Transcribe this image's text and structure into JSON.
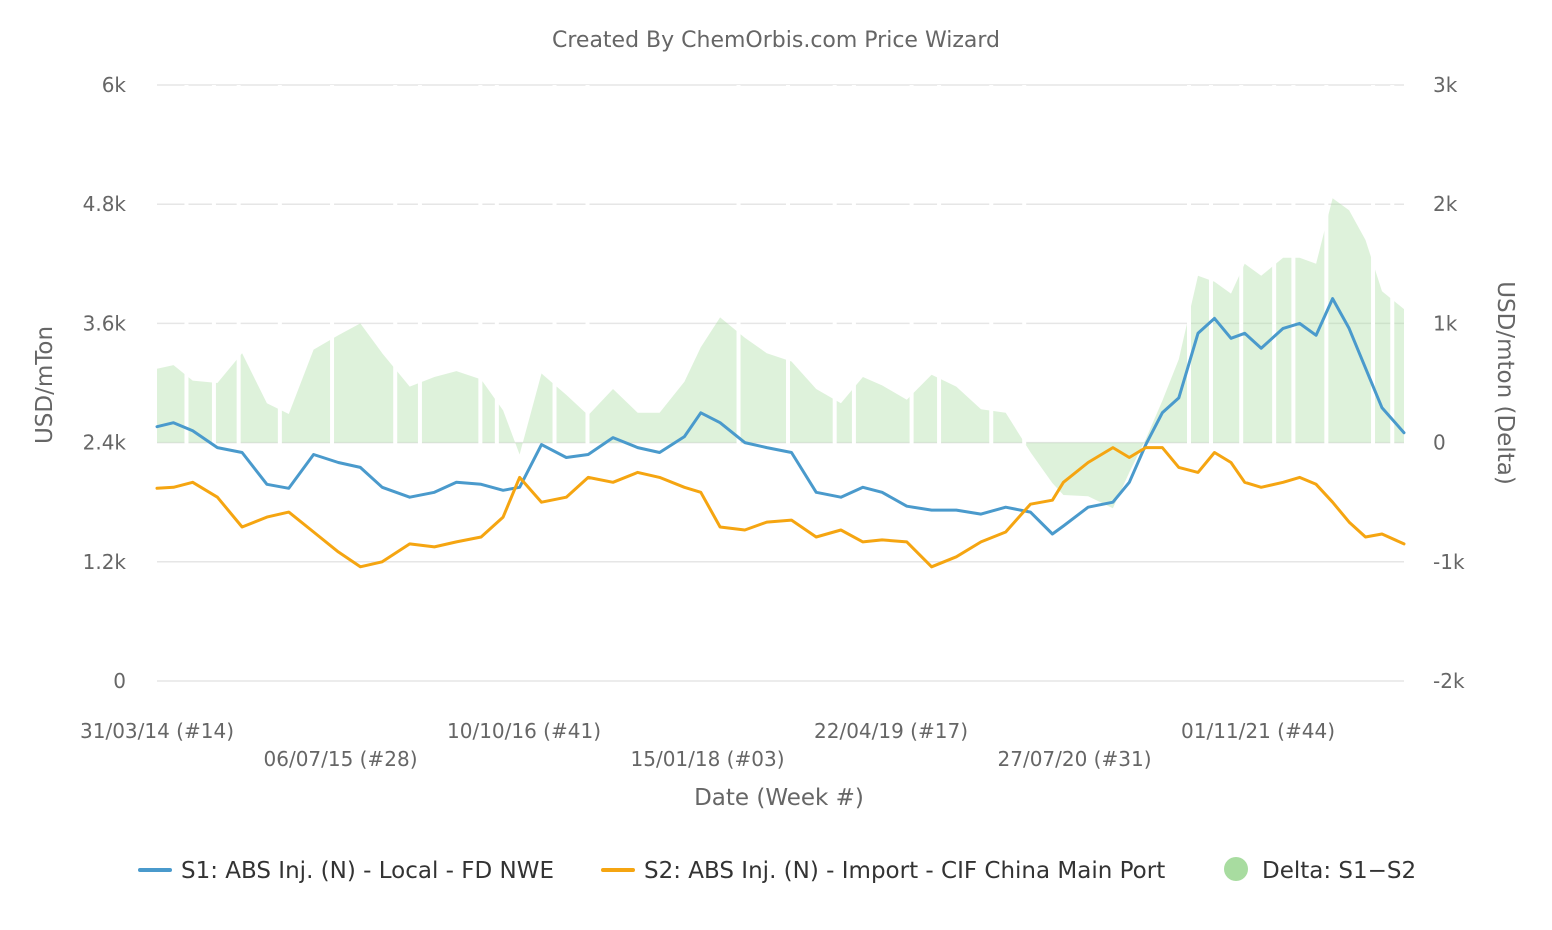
{
  "chart_data": {
    "type": "line",
    "title": "Created By ChemOrbis.com Price Wizard",
    "xlabel": "Date (Week #)",
    "ylabel": "USD/mTon",
    "y2label": "USD/mton (Delta)",
    "x_ticks": [
      "31/03/14 (#14)",
      "06/07/15 (#28)",
      "10/10/16 (#41)",
      "15/01/18 (#03)",
      "22/04/19 (#17)",
      "27/07/20 (#31)",
      "01/11/21 (#44)"
    ],
    "y_ticks": [
      "0",
      "1.2k",
      "2.4k",
      "3.6k",
      "4.8k",
      "6k"
    ],
    "y2_ticks": [
      "-2k",
      "-1k",
      "0",
      "1k",
      "2k",
      "3k"
    ],
    "ylim": [
      0,
      6000
    ],
    "y2lim": [
      -2000,
      3000
    ],
    "xlim": [
      "2014-03-31",
      "2022-12-12"
    ],
    "grid": true,
    "legend_position": "bottom",
    "series": [
      {
        "name": "S1: ABS Inj. (N) - Local - FD NWE",
        "color": "#4a9acc",
        "axis": "left",
        "x": [
          "2014-03-31",
          "2014-05-12",
          "2014-06-30",
          "2014-09-01",
          "2014-11-03",
          "2015-01-05",
          "2015-03-02",
          "2015-05-04",
          "2015-07-06",
          "2015-08-31",
          "2015-10-26",
          "2016-01-04",
          "2016-03-07",
          "2016-05-02",
          "2016-07-04",
          "2016-08-29",
          "2016-10-10",
          "2016-12-05",
          "2017-02-06",
          "2017-04-03",
          "2017-06-05",
          "2017-08-07",
          "2017-10-02",
          "2017-12-04",
          "2018-01-15",
          "2018-03-05",
          "2018-05-07",
          "2018-07-02",
          "2018-09-03",
          "2018-11-05",
          "2019-01-07",
          "2019-03-04",
          "2019-04-22",
          "2019-06-24",
          "2019-08-26",
          "2019-10-28",
          "2019-12-30",
          "2020-03-02",
          "2020-05-04",
          "2020-06-29",
          "2020-07-27",
          "2020-09-28",
          "2020-11-30",
          "2021-01-11",
          "2021-02-22",
          "2021-04-05",
          "2021-05-17",
          "2021-07-05",
          "2021-08-16",
          "2021-09-27",
          "2021-11-01",
          "2021-12-13",
          "2022-02-07",
          "2022-03-21",
          "2022-05-02",
          "2022-06-13",
          "2022-07-25",
          "2022-09-05",
          "2022-10-17",
          "2022-12-12"
        ],
        "values": [
          2560,
          2600,
          2520,
          2350,
          2300,
          1980,
          1940,
          2280,
          2200,
          2150,
          1950,
          1850,
          1900,
          2000,
          1980,
          1920,
          1950,
          2380,
          2250,
          2280,
          2450,
          2350,
          2300,
          2460,
          2700,
          2600,
          2400,
          2350,
          2300,
          1900,
          1850,
          1950,
          1900,
          1760,
          1720,
          1720,
          1680,
          1750,
          1700,
          1480,
          1560,
          1750,
          1800,
          2000,
          2380,
          2700,
          2850,
          3500,
          3650,
          3450,
          3500,
          3350,
          3550,
          3600,
          3480,
          3850,
          3550,
          3150,
          2750,
          2500
        ]
      },
      {
        "name": "S2: ABS Inj. (N) - Import - CIF China Main Port",
        "color": "#f5a511",
        "axis": "left",
        "x": [
          "2014-03-31",
          "2014-05-12",
          "2014-06-30",
          "2014-09-01",
          "2014-11-03",
          "2015-01-05",
          "2015-03-02",
          "2015-05-04",
          "2015-07-06",
          "2015-08-31",
          "2015-10-26",
          "2016-01-04",
          "2016-03-07",
          "2016-05-02",
          "2016-07-04",
          "2016-08-29",
          "2016-10-10",
          "2016-12-05",
          "2017-02-06",
          "2017-04-03",
          "2017-06-05",
          "2017-08-07",
          "2017-10-02",
          "2017-12-04",
          "2018-01-15",
          "2018-03-05",
          "2018-05-07",
          "2018-07-02",
          "2018-09-03",
          "2018-11-05",
          "2019-01-07",
          "2019-03-04",
          "2019-04-22",
          "2019-06-24",
          "2019-08-26",
          "2019-10-28",
          "2019-12-30",
          "2020-03-02",
          "2020-05-04",
          "2020-06-29",
          "2020-07-27",
          "2020-09-28",
          "2020-11-30",
          "2021-01-11",
          "2021-02-22",
          "2021-04-05",
          "2021-05-17",
          "2021-07-05",
          "2021-08-16",
          "2021-09-27",
          "2021-11-01",
          "2021-12-13",
          "2022-02-07",
          "2022-03-21",
          "2022-05-02",
          "2022-06-13",
          "2022-07-25",
          "2022-09-05",
          "2022-10-17",
          "2022-12-12"
        ],
        "values": [
          1940,
          1950,
          2000,
          1850,
          1550,
          1650,
          1700,
          1500,
          1300,
          1150,
          1200,
          1380,
          1350,
          1400,
          1450,
          1650,
          2050,
          1800,
          1850,
          2050,
          2000,
          2100,
          2050,
          1950,
          1900,
          1550,
          1520,
          1600,
          1620,
          1450,
          1520,
          1400,
          1420,
          1400,
          1150,
          1250,
          1400,
          1500,
          1780,
          1820,
          2000,
          2200,
          2350,
          2250,
          2350,
          2350,
          2150,
          2100,
          2300,
          2200,
          2000,
          1950,
          2000,
          2050,
          1980,
          1800,
          1600,
          1450,
          1480,
          1380
        ]
      },
      {
        "name": "Delta: S1−S2",
        "color": "#a8dca0",
        "type": "area",
        "axis": "right",
        "x": [
          "2014-03-31",
          "2014-05-12",
          "2014-06-30",
          "2014-09-01",
          "2014-11-03",
          "2015-01-05",
          "2015-03-02",
          "2015-05-04",
          "2015-07-06",
          "2015-08-31",
          "2015-10-26",
          "2016-01-04",
          "2016-03-07",
          "2016-05-02",
          "2016-07-04",
          "2016-08-29",
          "2016-10-10",
          "2016-12-05",
          "2017-02-06",
          "2017-04-03",
          "2017-06-05",
          "2017-08-07",
          "2017-10-02",
          "2017-12-04",
          "2018-01-15",
          "2018-03-05",
          "2018-05-07",
          "2018-07-02",
          "2018-09-03",
          "2018-11-05",
          "2019-01-07",
          "2019-03-04",
          "2019-04-22",
          "2019-06-24",
          "2019-08-26",
          "2019-10-28",
          "2019-12-30",
          "2020-03-02",
          "2020-05-04",
          "2020-06-29",
          "2020-07-27",
          "2020-09-28",
          "2020-11-30",
          "2021-01-11",
          "2021-02-22",
          "2021-04-05",
          "2021-05-17",
          "2021-07-05",
          "2021-08-16",
          "2021-09-27",
          "2021-11-01",
          "2021-12-13",
          "2022-02-07",
          "2022-03-21",
          "2022-05-02",
          "2022-06-13",
          "2022-07-25",
          "2022-09-05",
          "2022-10-17",
          "2022-12-12"
        ],
        "values": [
          620,
          650,
          520,
          500,
          750,
          330,
          240,
          780,
          900,
          1000,
          750,
          470,
          550,
          600,
          530,
          270,
          -100,
          580,
          400,
          230,
          450,
          250,
          250,
          510,
          800,
          1050,
          880,
          750,
          680,
          450,
          330,
          550,
          480,
          360,
          570,
          470,
          280,
          250,
          -80,
          -340,
          -440,
          -450,
          -550,
          -250,
          30,
          350,
          700,
          1400,
          1350,
          1250,
          1500,
          1400,
          1550,
          1550,
          1500,
          2050,
          1950,
          1700,
          1270,
          1120
        ]
      }
    ]
  }
}
